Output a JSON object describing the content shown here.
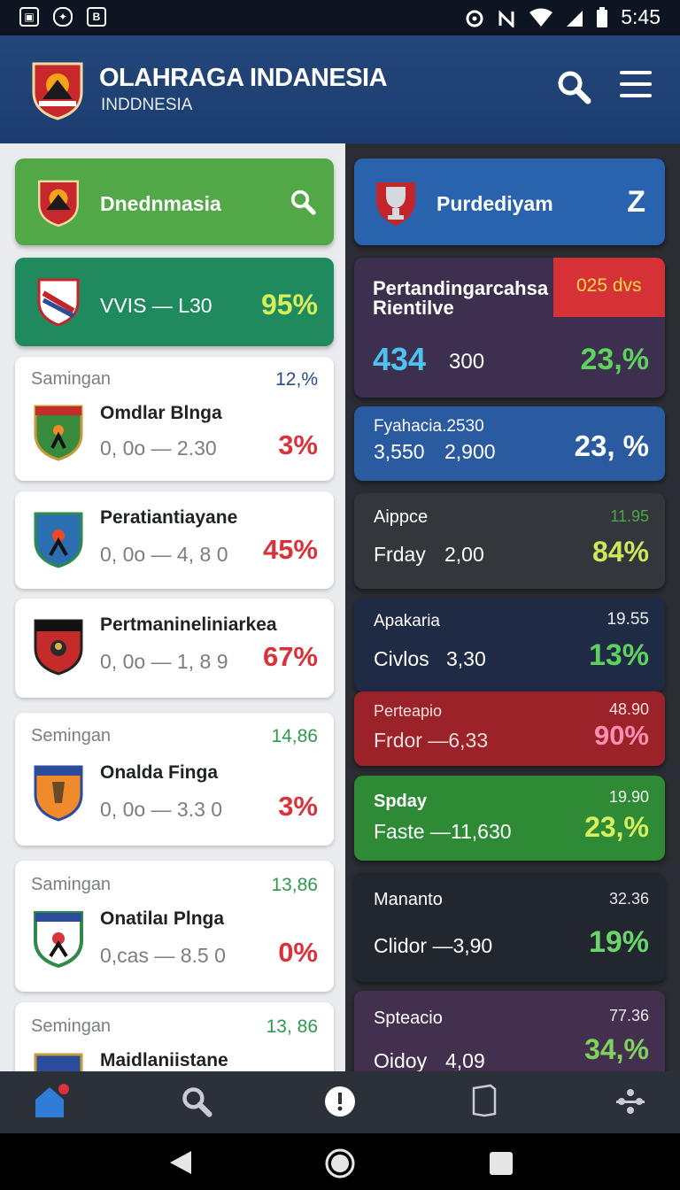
{
  "status_bar": {
    "time": "5:45",
    "left_icons": [
      "image-icon",
      "shield-icon",
      "b-icon"
    ],
    "right_icons": [
      "alarm-icon",
      "no-signal-icon",
      "wifi-icon",
      "signal-icon",
      "battery-icon"
    ]
  },
  "header": {
    "title": "OLAHRAGA INDANESIA",
    "subtitle": "INDDNESIA",
    "search_icon": "search-icon",
    "menu_icon": "menu-icon"
  },
  "left_column": {
    "banner": {
      "label": "Dnednmasia",
      "color": "#4fa845"
    },
    "highlight": {
      "score": "VVIS — L30",
      "percent": "95%",
      "color": "#1f8a5e"
    },
    "cards": [
      {
        "section": "Samingan",
        "corner": "12,%",
        "corner_color": "#2a4a86",
        "title": "Omdlar Blnga",
        "score": "0, 0o — 2.30",
        "percent": "3%"
      },
      {
        "section": "",
        "corner": "",
        "corner_color": "",
        "title": "Peratiantiayane",
        "score": "0, 0o — 4, 8 0",
        "percent": "45%"
      },
      {
        "section": "",
        "corner": "",
        "corner_color": "",
        "title": "Pertmanineliniarkea",
        "score": "0, 0o — 1, 8 9",
        "percent": "67%"
      },
      {
        "section": "Semingan",
        "corner": "14,86",
        "corner_color": "#2e9a4a",
        "title": "Onalda Finga",
        "score": "0, 0o — 3.3 0",
        "percent": "3%"
      },
      {
        "section": "Samingan",
        "corner": "13,86",
        "corner_color": "#2e9a4a",
        "title": "Onatilaı Plnga",
        "score": "0,cas — 8.5 0",
        "percent": "0%"
      },
      {
        "section": "Semingan",
        "corner": "13, 86",
        "corner_color": "#2e9a4a",
        "title": "Maidlaniistane",
        "score": "",
        "percent": ""
      }
    ]
  },
  "right_column": {
    "banner": {
      "label": "Purdediyam",
      "letter": "Z",
      "color": "#2a63ad"
    },
    "featured": {
      "title_line1": "Pertandingarcahsa",
      "title_line2": "Rientilve",
      "badge": "025 dvs",
      "badge_color": "#d63137",
      "big_number": "434",
      "small_number": "300",
      "percent": "23,%"
    },
    "cards": [
      {
        "title": "Fyahacia.2530",
        "left": "3,550",
        "middle": "2,900",
        "corner": "",
        "percent": "23, %",
        "bg": "#2a5aa0",
        "pct_color": "#ffffff",
        "corner_color": ""
      },
      {
        "title": "Aippce",
        "left": "Frday",
        "middle": "2,00",
        "corner": "11.95",
        "percent": "84%",
        "bg": "#33363b",
        "pct_color": "#cde85a",
        "corner_color": "#4aa84a"
      },
      {
        "title": "Apakaria",
        "left": "Civlos",
        "middle": "3,30",
        "corner": "19.55",
        "percent": "13%",
        "bg": "#1f2b45",
        "pct_color": "#5fd15f",
        "corner_color": "#e8ecf2"
      },
      {
        "title": "Perteapio",
        "left": "Frdor —6,33",
        "middle": "",
        "corner": "48.90",
        "percent": "90%",
        "bg": "#9c2229",
        "pct_color": "#ff8fb0",
        "corner_color": "#f1dede"
      },
      {
        "title": "Spday",
        "left": "Faste —11,630",
        "middle": "",
        "corner": "19.90",
        "percent": "23,%",
        "bg": "#2e8a34",
        "pct_color": "#d8f060",
        "corner_color": "#f0f6ee"
      },
      {
        "title": "Mananto",
        "left": "Clidor —3,90",
        "middle": "",
        "corner": "32.36",
        "percent": "19%",
        "bg": "#22262e",
        "pct_color": "#6ad66a",
        "corner_color": "#e6e9ee"
      },
      {
        "title": "Spteacio",
        "left": "Oidoy",
        "middle": "4,09",
        "corner": "77.36",
        "percent": "34,%",
        "bg": "#43304f",
        "pct_color": "#7ed35f",
        "corner_color": "#eee8f2"
      }
    ]
  },
  "bottom_nav": {
    "items": [
      "home-icon",
      "search-icon",
      "info-icon",
      "bookmark-icon",
      "more-icon"
    ]
  },
  "system_nav": {
    "items": [
      "back-icon",
      "home-circle-icon",
      "recents-icon"
    ]
  },
  "colors": {
    "header": "#1f4276",
    "left_bg": "#e9ebee",
    "right_bg": "#2a2d33",
    "percent_red": "#d8323a"
  }
}
